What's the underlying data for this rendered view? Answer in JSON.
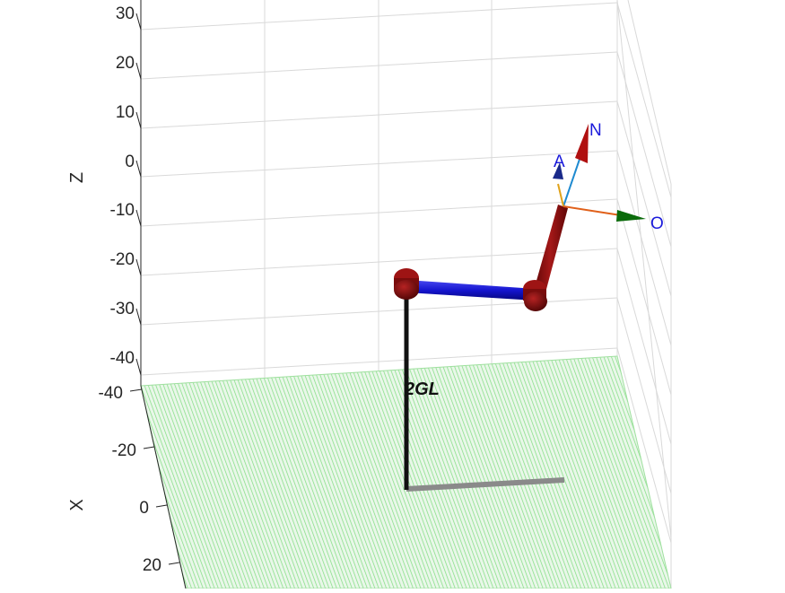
{
  "z_axis": {
    "label": "Z",
    "ticks": [
      "30",
      "20",
      "10",
      "0",
      "-10",
      "-20",
      "-30",
      "-40"
    ]
  },
  "x_axis": {
    "label": "X",
    "ticks": [
      "-40",
      "-20",
      "0",
      "20"
    ]
  },
  "robot": {
    "name": "2GL"
  },
  "end_effector_frame": {
    "axes": [
      {
        "label": "N",
        "color": "#b01010"
      },
      {
        "label": "A",
        "color": "#1a2a8a"
      },
      {
        "label": "O",
        "color": "#0a6a0a"
      }
    ]
  },
  "colors": {
    "floor": "#7fdc7f",
    "base_link": "#111111",
    "link_1": "#1515d0",
    "link_2": "#8b0f0f",
    "joint": "#8b0f0f",
    "shadow": "#8a8a8a",
    "grid": "#d9d9d9"
  }
}
